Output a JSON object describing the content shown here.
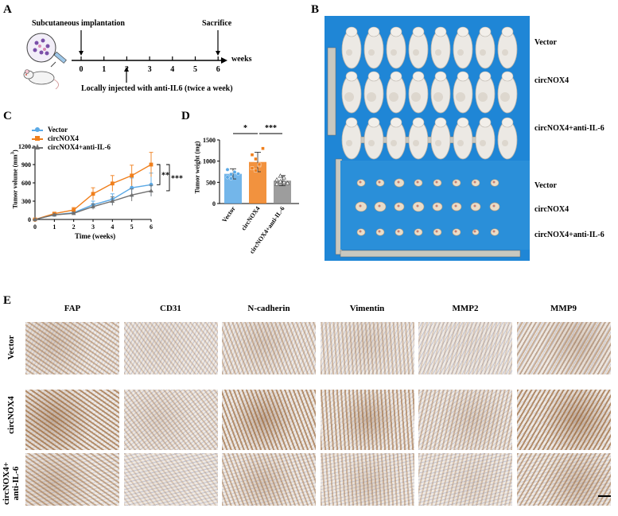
{
  "panels": {
    "A": "A",
    "B": "B",
    "C": "C",
    "D": "D",
    "E": "E"
  },
  "panelA": {
    "implant": "Subcutaneous implantation",
    "sacrifice": "Sacrifice",
    "ticks": [
      "0",
      "1",
      "2",
      "3",
      "4",
      "5",
      "6"
    ],
    "weeks": "weeks",
    "injection": "Locally injected with anti-IL6 (twice a week)"
  },
  "panelB": {
    "labels": [
      "Vector",
      "circNOX4",
      "circNOX4+anti-IL-6",
      "Vector",
      "circNOX4",
      "circNOX4+anti-IL-6"
    ],
    "background": "#1f86d6"
  },
  "chart_data": [
    {
      "type": "line",
      "xlabel": "Time (weeks)",
      "ylabel": "Tumor volume (mm³)",
      "ylabel_parts": [
        "Tumor volume (mm",
        "3",
        ")"
      ],
      "x": [
        0,
        1,
        2,
        3,
        4,
        5,
        6
      ],
      "ylim": [
        0,
        1200
      ],
      "yticks": [
        "0",
        "300",
        "600",
        "900",
        "1200"
      ],
      "xticks": [
        "0",
        "1",
        "2",
        "3",
        "4",
        "5",
        "6"
      ],
      "legend_position": "top-left",
      "series": [
        {
          "name": "Vector",
          "color": "#5aa9e6",
          "marker": "circle",
          "values": [
            0,
            75,
            110,
            240,
            330,
            520,
            570
          ],
          "err": [
            0,
            15,
            25,
            60,
            90,
            160,
            190
          ]
        },
        {
          "name": "circNOX4",
          "color": "#f07f1c",
          "marker": "square",
          "values": [
            0,
            95,
            155,
            420,
            590,
            720,
            900
          ],
          "err": [
            0,
            20,
            40,
            100,
            130,
            170,
            200
          ]
        },
        {
          "name": "circNOX4+anti-IL-6",
          "color": "#707070",
          "marker": "triangle",
          "values": [
            0,
            75,
            100,
            210,
            300,
            400,
            470
          ],
          "err": [
            0,
            15,
            20,
            45,
            70,
            100,
            90
          ]
        }
      ],
      "significance": [
        "**",
        "***"
      ]
    },
    {
      "type": "bar",
      "ylabel": "Tumor weight (mg)",
      "categories": [
        "Vector",
        "circNOX4",
        "circNOX4+anti-IL-6"
      ],
      "values": [
        700,
        980,
        540
      ],
      "err": [
        120,
        230,
        120
      ],
      "colors": [
        "#5aa9e6",
        "#f07f1c",
        "#8c8c8c"
      ],
      "points": [
        [
          620,
          690,
          750,
          700,
          800,
          590,
          740
        ],
        [
          830,
          1050,
          900,
          1300,
          1150,
          780,
          920
        ],
        [
          460,
          520,
          610,
          480,
          560,
          650,
          500
        ]
      ],
      "ylim": [
        0,
        1500
      ],
      "yticks": [
        "0",
        "500",
        "1000",
        "1500"
      ],
      "significance": [
        "*",
        "***"
      ]
    }
  ],
  "panelE": {
    "columns": [
      "FAP",
      "CD31",
      "N-cadherin",
      "Vimentin",
      "MMP2",
      "MMP9"
    ],
    "rows": [
      "Vector",
      "circNOX4",
      "circNOX4+\nanti-IL-6"
    ],
    "row_line1": [
      "Vector",
      "circNOX4",
      "circNOX4+"
    ],
    "row_line2": [
      "",
      "",
      "anti-IL-6"
    ],
    "intensity": [
      [
        0.45,
        0.15,
        0.35,
        0.3,
        0.1,
        0.45
      ],
      [
        0.85,
        0.25,
        0.8,
        0.65,
        0.35,
        0.85
      ],
      [
        0.55,
        0.1,
        0.45,
        0.35,
        0.2,
        0.55
      ]
    ]
  }
}
